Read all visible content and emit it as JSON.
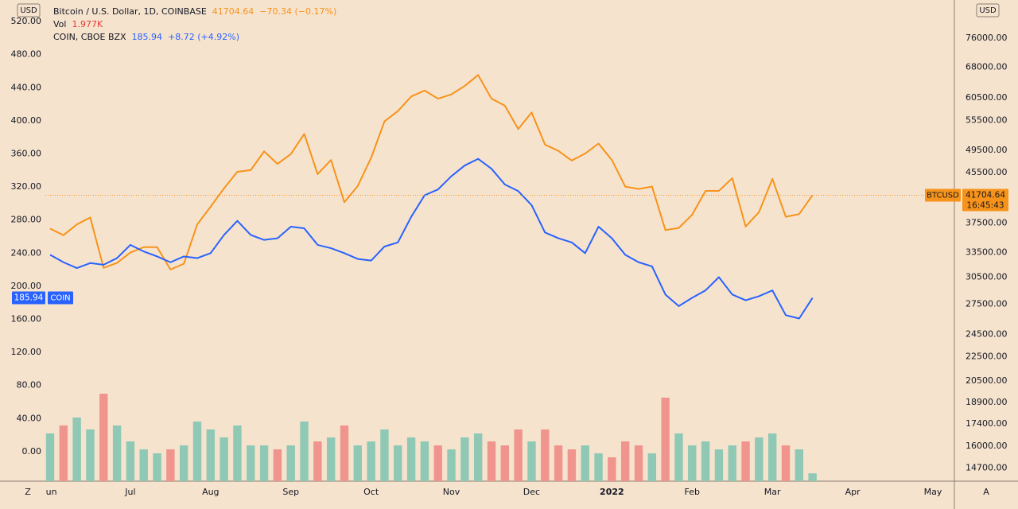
{
  "chart_data": {
    "type": "line",
    "header": {
      "btc_change": "−70.34 (−0.17%)",
      "coin_change": "+8.72 (+4.92%)",
      "countdown": "16:45:43"
    },
    "y_label": "USD",
    "y2_label": "USD",
    "buttons": [
      "Z",
      "A"
    ],
    "categories": [
      "Jun",
      null,
      null,
      null,
      null,
      null,
      "Jul",
      null,
      null,
      null,
      null,
      null,
      "Aug",
      null,
      null,
      null,
      null,
      null,
      "Sep",
      null,
      null,
      null,
      null,
      null,
      "Oct",
      null,
      null,
      null,
      null,
      null,
      "Nov",
      null,
      null,
      null,
      null,
      null,
      "Dec",
      null,
      null,
      null,
      null,
      null,
      "2022",
      null,
      null,
      null,
      null,
      null,
      "Feb",
      null,
      null,
      null,
      null,
      null,
      "Mar",
      null,
      null,
      null,
      null,
      null,
      "Apr",
      null,
      null,
      null,
      null,
      null,
      "May"
    ],
    "series": [
      {
        "name": "BTCUSD",
        "title": "Bitcoin / U.S. Dollar, 1D, COINBASE",
        "color": "#f7931a",
        "axis": "y2",
        "values": [
          36700,
          35800,
          37300,
          38300,
          31600,
          32200,
          33500,
          34200,
          34200,
          31400,
          32100,
          37300,
          39900,
          42800,
          45600,
          45900,
          49300,
          47000,
          48800,
          52700,
          45200,
          47700,
          40600,
          43200,
          48100,
          55300,
          57500,
          60800,
          62200,
          60300,
          61300,
          63300,
          66000,
          60300,
          58700,
          53700,
          57200,
          50600,
          49400,
          47600,
          48900,
          50800,
          47700,
          43100,
          42700,
          43100,
          36500,
          36800,
          38700,
          42400,
          42400,
          44500,
          37000,
          39100,
          44400,
          38400,
          38800,
          41704.64,
          null,
          null,
          null,
          null,
          null,
          null,
          null,
          null,
          null
        ]
      },
      {
        "name": "COIN",
        "title": "COIN, CBOE BZX",
        "color": "#2962ff",
        "axis": "y",
        "values": [
          238,
          229,
          222,
          228,
          226,
          234,
          250,
          242,
          236,
          229,
          236,
          234,
          240,
          262,
          279,
          262,
          256,
          258,
          272,
          270,
          250,
          246,
          240,
          233,
          231,
          248,
          253,
          284,
          310,
          317,
          333,
          346,
          354,
          342,
          323,
          315,
          298,
          265,
          258,
          253,
          240,
          272,
          258,
          238,
          229,
          224,
          190,
          176,
          186,
          195,
          211,
          190,
          183,
          188,
          195,
          165,
          161,
          185.94,
          null,
          null,
          null,
          null,
          null,
          null,
          null,
          null,
          null
        ]
      },
      {
        "name": "Vol",
        "type": "bar",
        "axis": "volume",
        "up_color": "#8fc9b5",
        "down_color": "#f0958e",
        "label_color": "#e53935",
        "values": [
          12,
          14,
          16,
          13,
          22,
          14,
          10,
          8,
          7,
          8,
          9,
          15,
          13,
          11,
          14,
          9,
          9,
          8,
          9,
          15,
          10,
          11,
          14,
          9,
          10,
          13,
          9,
          11,
          10,
          9,
          8,
          11,
          12,
          10,
          9,
          13,
          10,
          13,
          9,
          8,
          9,
          7,
          6,
          10,
          9,
          7,
          21,
          12,
          9,
          10,
          8,
          9,
          10,
          11,
          12,
          9,
          8,
          1.977,
          null,
          null,
          null,
          null,
          null,
          null,
          null,
          null,
          null
        ],
        "value_labels": [
          null,
          null,
          null,
          null,
          null,
          null,
          null,
          null,
          null,
          null,
          null,
          null,
          null,
          null,
          null,
          null,
          null,
          null,
          null,
          null,
          null,
          null,
          null,
          null,
          null,
          null,
          null,
          null,
          null,
          null,
          null,
          null,
          null,
          null,
          null,
          null,
          null,
          null,
          null,
          null,
          null,
          null,
          null,
          null,
          null,
          null,
          null,
          null,
          null,
          null,
          null,
          null,
          null,
          null,
          null,
          null,
          null,
          "1.977K",
          null,
          null,
          null,
          null,
          null,
          null,
          null,
          null,
          null
        ]
      }
    ],
    "ylim": [
      -35.6,
      546
    ],
    "yticks": [
      {
        "value": 0,
        "label": "0.00"
      },
      {
        "value": 40,
        "label": "40.00"
      },
      {
        "value": 80,
        "label": "80.00"
      },
      {
        "value": 120,
        "label": "120.00"
      },
      {
        "value": 160,
        "label": "160.00"
      },
      {
        "value": 200,
        "label": "200.00"
      },
      {
        "value": 240,
        "label": "240.00"
      },
      {
        "value": 280,
        "label": "280.00"
      },
      {
        "value": 320,
        "label": "320.00"
      },
      {
        "value": 360,
        "label": "360.00"
      },
      {
        "value": 400,
        "label": "400.00"
      },
      {
        "value": 440,
        "label": "440.00"
      },
      {
        "value": 480,
        "label": "480.00"
      },
      {
        "value": 520,
        "label": "520.00"
      }
    ],
    "y2lim": [
      13990,
      87900
    ],
    "y2log": true,
    "y2ticks": [
      {
        "value": 76000,
        "label": "76000.00"
      },
      {
        "value": 68000,
        "label": "68000.00"
      },
      {
        "value": 60500,
        "label": "60500.00"
      },
      {
        "value": 55500,
        "label": "55500.00"
      },
      {
        "value": 49500,
        "label": "49500.00"
      },
      {
        "value": 45500,
        "label": "45500.00"
      },
      {
        "value": 37500,
        "label": "37500.00"
      },
      {
        "value": 33500,
        "label": "33500.00"
      },
      {
        "value": 30500,
        "label": "30500.00"
      },
      {
        "value": 27500,
        "label": "27500.00"
      },
      {
        "value": 24500,
        "label": "24500.00"
      },
      {
        "value": 22500,
        "label": "22500.00"
      },
      {
        "value": 20500,
        "label": "20500.00"
      },
      {
        "value": 18900,
        "label": "18900.00"
      },
      {
        "value": 17400,
        "label": "17400.00"
      },
      {
        "value": 16000,
        "label": "16000.00"
      },
      {
        "value": 14700,
        "label": "14700.00"
      }
    ],
    "volume_lim": [
      0,
      40
    ],
    "grid": false,
    "background": "#f6e3ce"
  }
}
